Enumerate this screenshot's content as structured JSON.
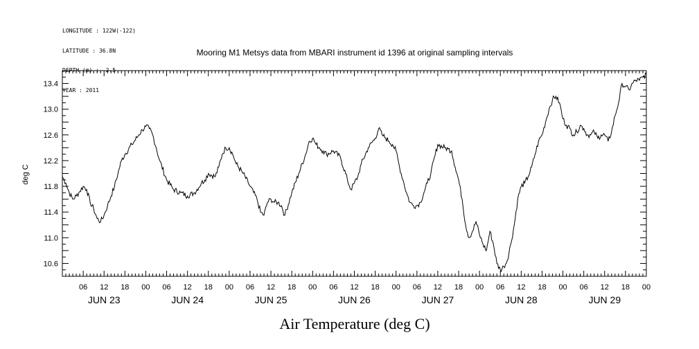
{
  "header": {
    "longitude": "LONGITUDE : 122W(-122)",
    "latitude": "LATITUDE : 36.8N",
    "depth": "DEPTH (m) : -2.5",
    "year": "YEAR : 2011"
  },
  "chart_data": {
    "type": "line",
    "title": "Mooring M1 Metsys data from MBARI instrument id 1396 at original sampling intervals",
    "ylabel": "deg C",
    "xlabel": "Air Temperature (deg C)",
    "xlim_hours": [
      0,
      168
    ],
    "ylim": [
      10.4,
      13.6
    ],
    "y_ticks": [
      "13.4",
      "13.0",
      "12.6",
      "12.2",
      "11.8",
      "11.4",
      "11.0",
      "10.6"
    ],
    "x_hour_ticks": [
      "06",
      "12",
      "18",
      "00",
      "06",
      "12",
      "18",
      "00",
      "06",
      "12",
      "18",
      "00",
      "06",
      "12",
      "18",
      "00",
      "06",
      "12",
      "18",
      "00",
      "06",
      "12",
      "18",
      "00",
      "06",
      "12",
      "18",
      "00"
    ],
    "x_day_labels": [
      "JUN 23",
      "JUN 24",
      "JUN 25",
      "JUN 26",
      "JUN 27",
      "JUN 28",
      "JUN 29"
    ],
    "series": [
      {
        "color": "#000000",
        "x": [
          0,
          1,
          2,
          3,
          4,
          5,
          6,
          7,
          8,
          9,
          10,
          11,
          12,
          13,
          14,
          15,
          16,
          17,
          18,
          20,
          22,
          23,
          24,
          25,
          26,
          27,
          28,
          30,
          32,
          34,
          36,
          38,
          40,
          41,
          42,
          44,
          45,
          46,
          47,
          48,
          49,
          50,
          52,
          54,
          56,
          57,
          58,
          59,
          60,
          61,
          62,
          63,
          64,
          66,
          68,
          70,
          71,
          72,
          73,
          74,
          75,
          76,
          78,
          80,
          82,
          83,
          84,
          85,
          86,
          88,
          90,
          91,
          92,
          93,
          94,
          95,
          96,
          97,
          98,
          99,
          100,
          101,
          102,
          103,
          104,
          105,
          106,
          108,
          110,
          111,
          112,
          113,
          114,
          115,
          116,
          117,
          118,
          119,
          120,
          121,
          122,
          123,
          124,
          125,
          126,
          127,
          128,
          129,
          130,
          131,
          132,
          133,
          134,
          135,
          136,
          137,
          138,
          139,
          140,
          141,
          142,
          143,
          144,
          145,
          146,
          147,
          148,
          149,
          150,
          151,
          152,
          153,
          154,
          155,
          156,
          157,
          158,
          159,
          160,
          161,
          162,
          163,
          164,
          165,
          166,
          167,
          168
        ],
        "y": [
          11.95,
          11.85,
          11.7,
          11.6,
          11.65,
          11.72,
          11.8,
          11.75,
          11.55,
          11.45,
          11.3,
          11.25,
          11.35,
          11.5,
          11.65,
          11.8,
          12.0,
          12.2,
          12.3,
          12.45,
          12.6,
          12.68,
          12.73,
          12.7,
          12.6,
          12.4,
          12.2,
          11.9,
          11.75,
          11.7,
          11.65,
          11.7,
          11.85,
          11.9,
          12.0,
          11.95,
          12.1,
          12.3,
          12.4,
          12.4,
          12.3,
          12.15,
          12.0,
          11.8,
          11.6,
          11.4,
          11.35,
          11.55,
          11.6,
          11.55,
          11.55,
          11.5,
          11.35,
          11.7,
          12.0,
          12.3,
          12.5,
          12.55,
          12.45,
          12.4,
          12.35,
          12.3,
          12.35,
          12.25,
          11.9,
          11.75,
          11.85,
          11.95,
          12.15,
          12.4,
          12.55,
          12.7,
          12.6,
          12.55,
          12.5,
          12.45,
          12.35,
          12.1,
          11.9,
          11.7,
          11.55,
          11.5,
          11.5,
          11.55,
          11.7,
          11.85,
          12.0,
          12.45,
          12.4,
          12.38,
          12.35,
          12.1,
          11.9,
          11.6,
          11.2,
          11.0,
          11.1,
          11.25,
          11.05,
          10.9,
          10.8,
          11.1,
          10.9,
          10.6,
          10.5,
          10.55,
          10.65,
          10.9,
          11.2,
          11.6,
          11.8,
          11.85,
          11.95,
          12.1,
          12.3,
          12.5,
          12.6,
          12.8,
          13.0,
          13.15,
          13.2,
          13.1,
          12.85,
          12.75,
          12.7,
          12.6,
          12.65,
          12.75,
          12.7,
          12.6,
          12.6,
          12.65,
          12.55,
          12.6,
          12.6,
          12.5,
          12.65,
          12.9,
          13.1,
          13.4,
          13.35,
          13.3,
          13.4,
          13.45,
          13.45,
          13.5,
          13.55
        ]
      }
    ]
  }
}
